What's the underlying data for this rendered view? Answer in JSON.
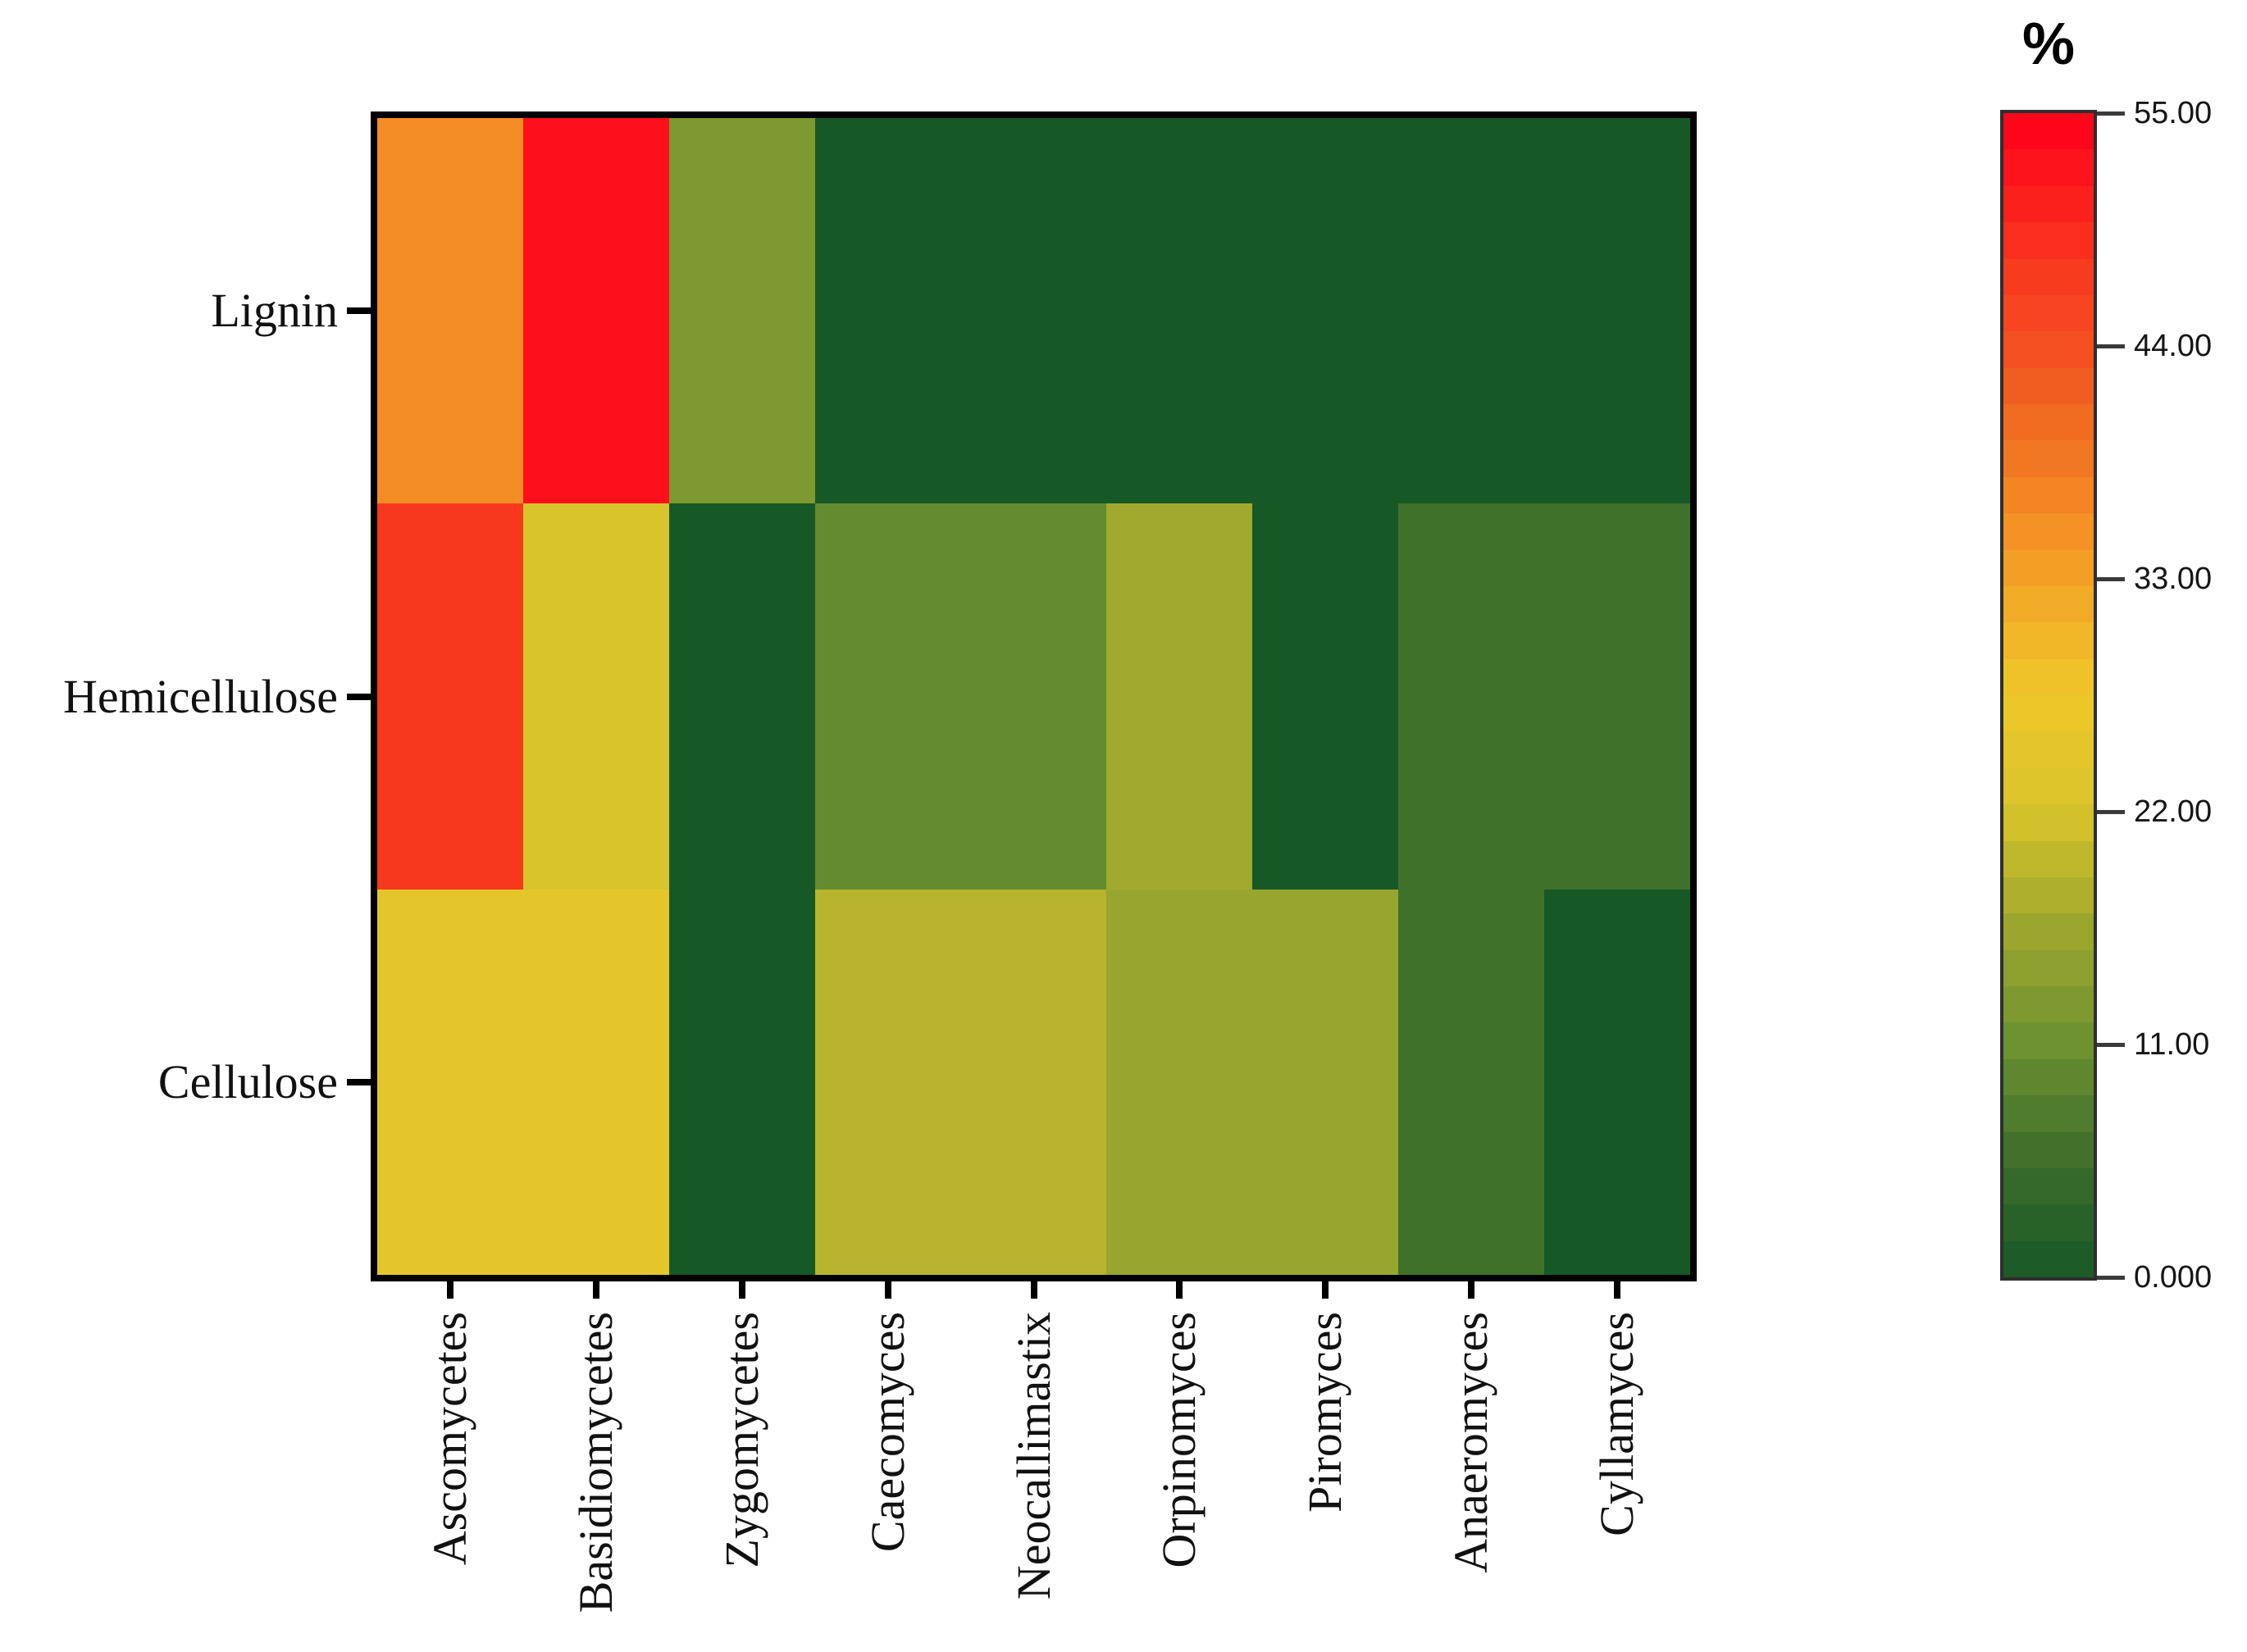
{
  "chart_data": {
    "type": "heatmap",
    "rows": [
      "Lignin",
      "Hemicellulose",
      "Cellulose"
    ],
    "columns": [
      "Ascomycetes",
      "Basidiomycetes",
      "Zygomycetes",
      "Caecomyces",
      "Neocallimastix",
      "Orpinomyces",
      "Piromyces",
      "Anaeromyces",
      "Cyllamyces"
    ],
    "values_percent": [
      [
        36,
        53,
        13,
        0,
        0,
        0,
        0,
        0,
        0
      ],
      [
        48,
        22,
        0,
        10,
        10,
        17,
        0,
        6,
        6
      ],
      [
        25,
        25,
        0,
        19,
        19,
        16,
        16,
        6,
        0
      ]
    ],
    "grid": "off",
    "x_tick_label_rotation_deg": 90,
    "colorbar": {
      "label": "%",
      "min": 0,
      "max": 55,
      "steps": 32,
      "position": "right",
      "tick_labels": [
        "55.00",
        "44.00",
        "33.00",
        "22.00",
        "11.00",
        "0.000"
      ],
      "tick_values": [
        55,
        44,
        33,
        22,
        11,
        0
      ],
      "palette_stops": [
        {
          "v": 0,
          "c": "#175827"
        },
        {
          "v": 5.5,
          "c": "#3c6e2b"
        },
        {
          "v": 11,
          "c": "#6d9130"
        },
        {
          "v": 16.5,
          "c": "#9ca72e"
        },
        {
          "v": 22,
          "c": "#d8c42b"
        },
        {
          "v": 27.5,
          "c": "#efc829"
        },
        {
          "v": 33,
          "c": "#f3a326"
        },
        {
          "v": 37,
          "c": "#f48424"
        },
        {
          "v": 41,
          "c": "#f0661f"
        },
        {
          "v": 44,
          "c": "#f44e21"
        },
        {
          "v": 48,
          "c": "#f8371f"
        },
        {
          "v": 51,
          "c": "#fc1d1c"
        },
        {
          "v": 55,
          "c": "#fe0019"
        }
      ]
    },
    "colors": {
      "plot_border": "#000000",
      "colorbar_border": "#2f2f2f",
      "tick_color": "#000000",
      "label_color": "#111111",
      "background": "#ffffff"
    }
  }
}
